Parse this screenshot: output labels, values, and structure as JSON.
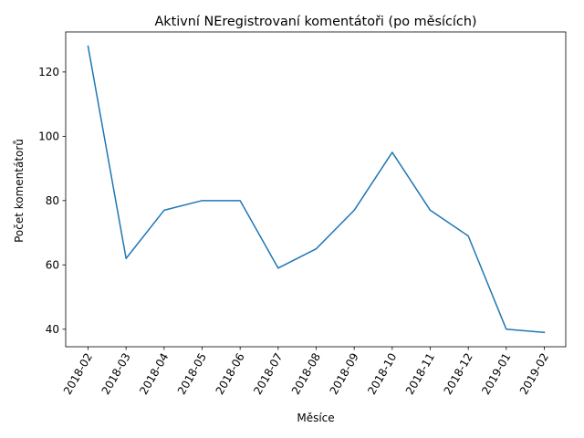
{
  "chart_data": {
    "type": "line",
    "title": "Aktivní NEregistrovaní komentátoři (po měsících)",
    "xlabel": "Měsíce",
    "ylabel": "Počet komentátorů",
    "categories": [
      "2018-02",
      "2018-03",
      "2018-04",
      "2018-05",
      "2018-06",
      "2018-07",
      "2018-08",
      "2018-09",
      "2018-10",
      "2018-11",
      "2018-12",
      "2019-01",
      "2019-02"
    ],
    "series": [
      {
        "values": [
          128,
          62,
          77,
          80,
          80,
          59,
          65,
          77,
          95,
          77,
          69,
          40,
          39
        ]
      }
    ],
    "ylim": [
      34.55,
      132.45
    ],
    "yticks": [
      40,
      60,
      80,
      100,
      120
    ],
    "grid": false,
    "line_color": "#1f77b4"
  }
}
